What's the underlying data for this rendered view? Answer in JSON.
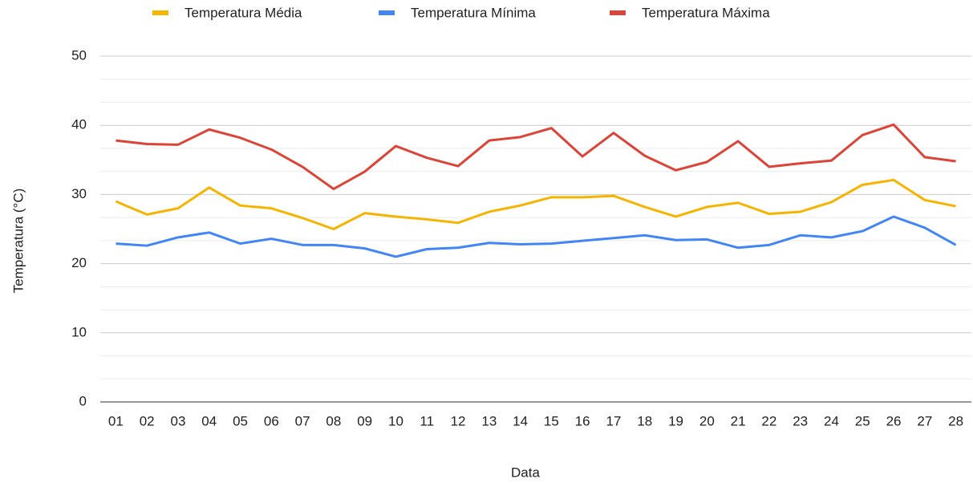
{
  "chart_data": {
    "type": "line",
    "categories": [
      "01",
      "02",
      "03",
      "04",
      "05",
      "06",
      "07",
      "08",
      "09",
      "10",
      "11",
      "12",
      "13",
      "14",
      "15",
      "16",
      "17",
      "18",
      "19",
      "20",
      "21",
      "22",
      "23",
      "24",
      "25",
      "26",
      "27",
      "28"
    ],
    "series": [
      {
        "name": "Temperatura Média",
        "color": "#f4b400",
        "values": [
          29.0,
          27.1,
          28.0,
          31.0,
          28.4,
          28.0,
          26.6,
          25.0,
          27.3,
          26.8,
          26.4,
          25.9,
          27.5,
          28.4,
          29.6,
          29.6,
          29.8,
          28.2,
          26.8,
          28.2,
          28.8,
          27.2,
          27.5,
          28.9,
          31.4,
          32.1,
          29.2,
          28.3
        ]
      },
      {
        "name": "Temperatura Mínima",
        "color": "#4285f4",
        "values": [
          22.9,
          22.6,
          23.8,
          24.5,
          22.9,
          23.6,
          22.7,
          22.7,
          22.2,
          21.0,
          22.1,
          22.3,
          23.0,
          22.8,
          22.9,
          23.3,
          23.7,
          24.1,
          23.4,
          23.5,
          22.3,
          22.7,
          24.1,
          23.8,
          24.7,
          26.8,
          25.2,
          22.7
        ]
      },
      {
        "name": "Temperatura Máxima",
        "color": "#db4437",
        "values": [
          37.8,
          37.3,
          37.2,
          39.4,
          38.2,
          36.5,
          34.0,
          30.8,
          33.3,
          37.0,
          35.3,
          34.1,
          37.8,
          38.3,
          39.6,
          35.5,
          38.9,
          35.6,
          33.5,
          34.7,
          37.7,
          34.0,
          34.5,
          34.9,
          38.6,
          40.1,
          35.4,
          34.8
        ]
      }
    ],
    "ylim": [
      0,
      50
    ],
    "yticks": [
      0,
      10,
      20,
      30,
      40,
      50
    ],
    "grid": true,
    "legend": "top",
    "xlabel": "Data",
    "ylabel": "Temperatura (°C)"
  }
}
